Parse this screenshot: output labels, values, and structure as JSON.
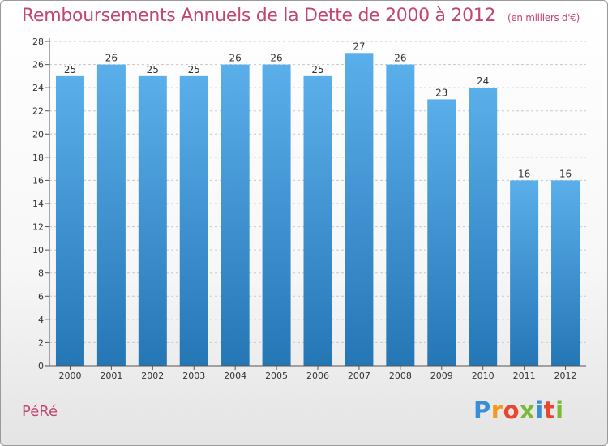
{
  "header": {
    "title": "Remboursements Annuels de la Dette de 2000 à 2012",
    "subtitle": "(en milliers d'€)"
  },
  "footer": {
    "commune": "PéRé",
    "logo": {
      "letters": [
        "P",
        "r",
        "o",
        "x",
        "i",
        "t",
        "i"
      ],
      "colors": [
        "#3a8fd4",
        "#f29a1f",
        "#e9452f",
        "#7cb93a",
        "#3a8fd4",
        "#e9452f",
        "#7cb93a"
      ]
    }
  },
  "colors": {
    "title": "#c2466e",
    "bar_top": "#5aafea",
    "bar_bottom": "#2576b5",
    "grid": "#c8c8c8"
  },
  "chart_data": {
    "type": "bar",
    "title": "Remboursements Annuels de la Dette de 2000 à 2012",
    "subtitle": "(en milliers d'€)",
    "categories": [
      "2000",
      "2001",
      "2002",
      "2003",
      "2004",
      "2005",
      "2006",
      "2007",
      "2008",
      "2009",
      "2010",
      "2011",
      "2012"
    ],
    "values": [
      25,
      26,
      25,
      25,
      26,
      26,
      25,
      27,
      26,
      23,
      24,
      16,
      16
    ],
    "yticks": [
      "0",
      "2",
      "4",
      "6",
      "8",
      "10",
      "12",
      "14",
      "16",
      "18",
      "20",
      "22",
      "24",
      "26",
      "28"
    ],
    "ylim": [
      0,
      28
    ],
    "ystep": 2,
    "grid": true,
    "xlabel": "",
    "ylabel": ""
  }
}
